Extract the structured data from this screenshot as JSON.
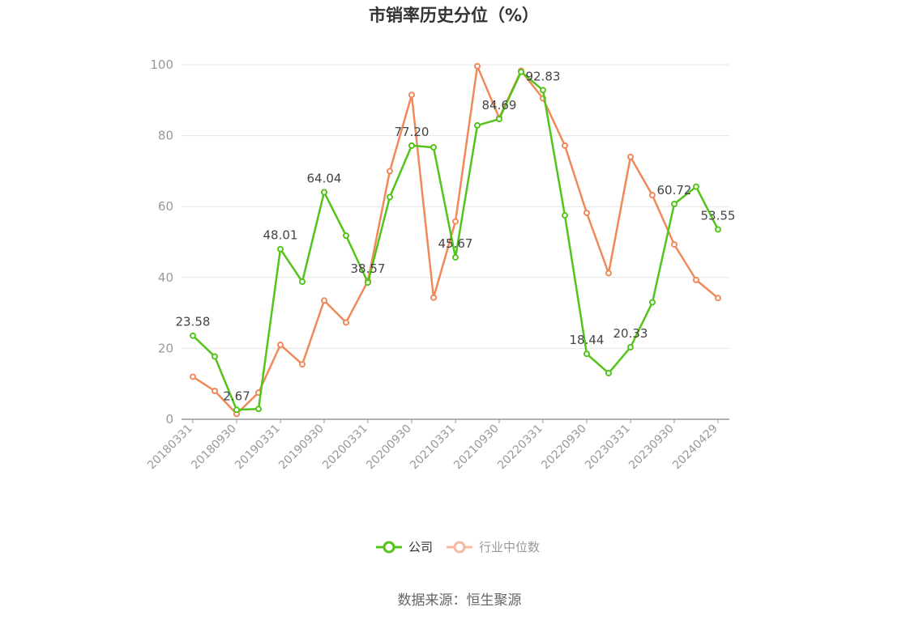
{
  "chart_data": {
    "type": "line",
    "title": "市销率历史分位（%）",
    "xlabel": "",
    "ylabel": "",
    "ylim": [
      0,
      100
    ],
    "yticks": [
      0,
      20,
      40,
      60,
      80,
      100
    ],
    "grid": true,
    "legend_position": "bottom",
    "x": [
      "20180331",
      "20180630",
      "20180930",
      "20181231",
      "20190331",
      "20190630",
      "20190930",
      "20191231",
      "20200331",
      "20200630",
      "20200930",
      "20201231",
      "20210331",
      "20210630",
      "20210930",
      "20211231",
      "20220331",
      "20220630",
      "20220930",
      "20221231",
      "20230331",
      "20230630",
      "20230930",
      "20231231",
      "20240429"
    ],
    "x_tick_labels": [
      "20180331",
      "20180930",
      "20190331",
      "20190930",
      "20200331",
      "20200930",
      "20210331",
      "20210930",
      "20220331",
      "20220930",
      "20230331",
      "20230930",
      "20240429"
    ],
    "series": [
      {
        "name": "公司",
        "color": "#52c41a",
        "values": [
          23.58,
          17.7,
          2.67,
          2.9,
          48.01,
          38.8,
          64.04,
          51.8,
          38.57,
          62.7,
          77.2,
          76.7,
          45.67,
          82.9,
          84.69,
          98.0,
          92.83,
          57.5,
          18.44,
          13.0,
          20.33,
          33.0,
          60.72,
          65.6,
          53.55
        ],
        "labels": [
          "23.58",
          "",
          "2.67",
          "",
          "48.01",
          "",
          "64.04",
          "",
          "38.57",
          "",
          "77.20",
          "",
          "45.67",
          "",
          "84.69",
          "",
          "92.83",
          "",
          "18.44",
          "",
          "20.33",
          "",
          "60.72",
          "",
          "53.55"
        ]
      },
      {
        "name": "行业中位数",
        "color": "#f0895a",
        "values": [
          12.0,
          8.0,
          1.5,
          7.5,
          21.0,
          15.5,
          33.5,
          27.3,
          39.0,
          70.0,
          91.5,
          34.3,
          55.8,
          99.6,
          85.0,
          98.3,
          90.5,
          77.2,
          58.2,
          41.2,
          74.0,
          63.2,
          49.3,
          39.3,
          34.2
        ]
      }
    ]
  },
  "legend": {
    "company": "公司",
    "industry": "行业中位数"
  },
  "source": "数据来源：恒生聚源"
}
